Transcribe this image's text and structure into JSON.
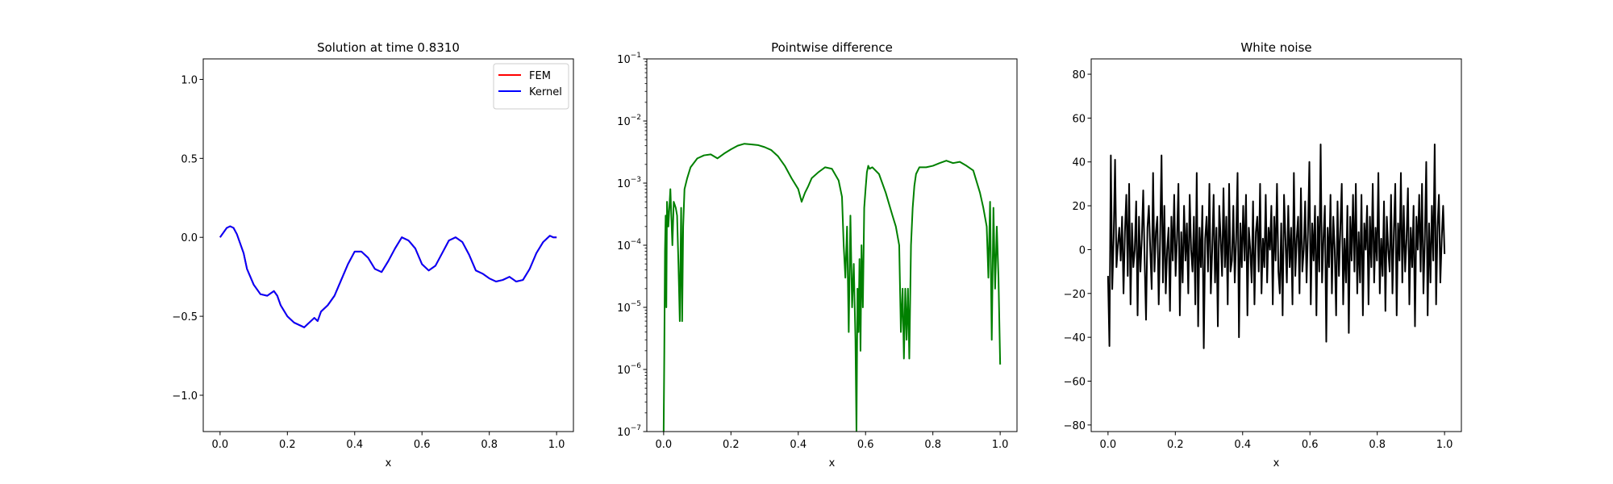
{
  "chart_data": [
    {
      "type": "line",
      "title": "Solution at time 0.8310",
      "xlabel": "x",
      "ylabel": "",
      "xlim": [
        -0.05,
        1.05
      ],
      "ylim": [
        -1.23,
        1.13
      ],
      "xticks": [
        0.0,
        0.2,
        0.4,
        0.6,
        0.8,
        1.0
      ],
      "xtick_labels": [
        "0.0",
        "0.2",
        "0.4",
        "0.6",
        "0.8",
        "1.0"
      ],
      "yticks": [
        -1.0,
        -0.5,
        0.0,
        0.5,
        1.0
      ],
      "ytick_labels": [
        "−1.0",
        "−0.5",
        "0.0",
        "0.5",
        "1.0"
      ],
      "grid": false,
      "legend": "top-right",
      "x": [
        0.0,
        0.01,
        0.02,
        0.03,
        0.04,
        0.05,
        0.06,
        0.07,
        0.08,
        0.1,
        0.12,
        0.14,
        0.16,
        0.17,
        0.18,
        0.2,
        0.22,
        0.24,
        0.25,
        0.26,
        0.28,
        0.29,
        0.3,
        0.32,
        0.34,
        0.36,
        0.38,
        0.4,
        0.42,
        0.44,
        0.46,
        0.48,
        0.5,
        0.52,
        0.54,
        0.56,
        0.58,
        0.6,
        0.62,
        0.64,
        0.66,
        0.68,
        0.7,
        0.72,
        0.74,
        0.76,
        0.78,
        0.8,
        0.82,
        0.84,
        0.86,
        0.88,
        0.9,
        0.92,
        0.94,
        0.96,
        0.98,
        0.99,
        1.0
      ],
      "series": [
        {
          "name": "FEM",
          "color": "#ff0000",
          "values": [
            0.0,
            0.03,
            0.06,
            0.07,
            0.06,
            0.02,
            -0.04,
            -0.1,
            -0.2,
            -0.3,
            -0.36,
            -0.37,
            -0.34,
            -0.37,
            -0.43,
            -0.5,
            -0.54,
            -0.56,
            -0.57,
            -0.55,
            -0.51,
            -0.53,
            -0.47,
            -0.43,
            -0.37,
            -0.27,
            -0.17,
            -0.09,
            -0.09,
            -0.13,
            -0.2,
            -0.22,
            -0.15,
            -0.07,
            -0.0,
            -0.02,
            -0.07,
            -0.17,
            -0.21,
            -0.18,
            -0.1,
            -0.02,
            0.0,
            -0.03,
            -0.11,
            -0.21,
            -0.23,
            -0.26,
            -0.28,
            -0.27,
            -0.25,
            -0.28,
            -0.27,
            -0.2,
            -0.1,
            -0.03,
            0.01,
            -0.0,
            -0.0
          ]
        },
        {
          "name": "Kernel",
          "color": "#0000ff",
          "values": [
            0.0,
            0.03,
            0.06,
            0.07,
            0.06,
            0.02,
            -0.04,
            -0.1,
            -0.2,
            -0.3,
            -0.36,
            -0.37,
            -0.34,
            -0.37,
            -0.43,
            -0.5,
            -0.54,
            -0.56,
            -0.57,
            -0.55,
            -0.51,
            -0.53,
            -0.47,
            -0.43,
            -0.37,
            -0.27,
            -0.17,
            -0.09,
            -0.09,
            -0.13,
            -0.2,
            -0.22,
            -0.15,
            -0.07,
            -0.0,
            -0.02,
            -0.07,
            -0.17,
            -0.21,
            -0.18,
            -0.1,
            -0.02,
            0.0,
            -0.03,
            -0.11,
            -0.21,
            -0.23,
            -0.26,
            -0.28,
            -0.27,
            -0.25,
            -0.28,
            -0.27,
            -0.2,
            -0.1,
            -0.03,
            0.01,
            -0.0,
            -0.0
          ]
        }
      ]
    },
    {
      "type": "line",
      "title": "Pointwise difference",
      "xlabel": "x",
      "ylabel": "",
      "yscale": "log",
      "xlim": [
        -0.05,
        1.05
      ],
      "ylim": [
        1e-07,
        0.1
      ],
      "xticks": [
        0.0,
        0.2,
        0.4,
        0.6,
        0.8,
        1.0
      ],
      "xtick_labels": [
        "0.0",
        "0.2",
        "0.4",
        "0.6",
        "0.8",
        "1.0"
      ],
      "yticks": [
        1e-07,
        1e-06,
        1e-05,
        0.0001,
        0.001,
        0.01,
        0.1
      ],
      "ytick_base": "10",
      "ytick_exponents": [
        "−7",
        "−6",
        "−5",
        "−4",
        "−3",
        "−2",
        "−1"
      ],
      "grid": false,
      "series": [
        {
          "color": "#008000",
          "x": [
            0.0,
            0.002,
            0.004,
            0.006,
            0.008,
            0.01,
            0.014,
            0.02,
            0.026,
            0.03,
            0.036,
            0.04,
            0.044,
            0.048,
            0.052,
            0.055,
            0.058,
            0.062,
            0.07,
            0.08,
            0.1,
            0.12,
            0.14,
            0.16,
            0.18,
            0.2,
            0.22,
            0.24,
            0.26,
            0.28,
            0.3,
            0.32,
            0.34,
            0.36,
            0.38,
            0.4,
            0.41,
            0.42,
            0.43,
            0.44,
            0.46,
            0.48,
            0.5,
            0.52,
            0.53,
            0.535,
            0.54,
            0.545,
            0.55,
            0.555,
            0.56,
            0.565,
            0.57,
            0.573,
            0.576,
            0.579,
            0.582,
            0.585,
            0.588,
            0.592,
            0.596,
            0.6,
            0.604,
            0.608,
            0.612,
            0.62,
            0.64,
            0.66,
            0.68,
            0.69,
            0.7,
            0.705,
            0.71,
            0.714,
            0.718,
            0.722,
            0.726,
            0.73,
            0.735,
            0.74,
            0.745,
            0.75,
            0.76,
            0.78,
            0.8,
            0.82,
            0.84,
            0.86,
            0.88,
            0.9,
            0.92,
            0.94,
            0.95,
            0.96,
            0.965,
            0.97,
            0.975,
            0.98,
            0.985,
            0.99,
            0.995,
            1.0
          ],
          "values": [
            1e-07,
            2e-06,
            8e-05,
            0.0003,
            1e-05,
            0.0005,
            0.0002,
            0.0008,
            0.0001,
            0.0005,
            0.0004,
            0.0003,
            5e-05,
            6e-06,
            0.0004,
            6e-06,
            0.0002,
            0.0008,
            0.0012,
            0.0018,
            0.0025,
            0.0028,
            0.0029,
            0.0025,
            0.003,
            0.0035,
            0.004,
            0.0043,
            0.0042,
            0.0041,
            0.0038,
            0.0034,
            0.0027,
            0.0019,
            0.0012,
            0.0008,
            0.0005,
            0.0007,
            0.0009,
            0.0012,
            0.0015,
            0.0018,
            0.0017,
            0.0011,
            0.0006,
            0.0001,
            3e-05,
            0.0002,
            4e-06,
            0.0003,
            1e-05,
            5e-05,
            3e-06,
            1e-07,
            2e-05,
            4e-06,
            6e-05,
            2e-06,
            0.0001,
            1e-05,
            0.0004,
            0.0008,
            0.0015,
            0.0019,
            0.0017,
            0.0018,
            0.0014,
            0.0007,
            0.0003,
            0.0002,
            0.0001,
            4e-06,
            2e-05,
            1.5e-06,
            2e-05,
            3e-06,
            2e-05,
            1.5e-06,
            0.0001,
            0.0004,
            0.0009,
            0.0014,
            0.0018,
            0.0018,
            0.0019,
            0.0021,
            0.0023,
            0.0021,
            0.0022,
            0.0019,
            0.0016,
            0.0007,
            0.0004,
            0.0002,
            3e-05,
            0.0005,
            3e-06,
            0.0004,
            2e-05,
            0.0002,
            3e-05,
            1.2e-06
          ]
        }
      ]
    },
    {
      "type": "line",
      "title": "White noise",
      "xlabel": "x",
      "ylabel": "",
      "xlim": [
        -0.05,
        1.05
      ],
      "ylim": [
        -83,
        87
      ],
      "xticks": [
        0.0,
        0.2,
        0.4,
        0.6,
        0.8,
        1.0
      ],
      "xtick_labels": [
        "0.0",
        "0.2",
        "0.4",
        "0.6",
        "0.8",
        "1.0"
      ],
      "yticks": [
        -80,
        -60,
        -40,
        -20,
        0,
        20,
        40,
        60,
        80
      ],
      "ytick_labels": [
        "−80",
        "−60",
        "−40",
        "−20",
        "0",
        "20",
        "40",
        "60",
        "80"
      ],
      "grid": false,
      "series": [
        {
          "color": "#000000",
          "x_start": 0.0,
          "x_end": 1.0,
          "values": [
            -12,
            -44,
            43,
            -18,
            5,
            41,
            -8,
            2,
            10,
            -5,
            15,
            -20,
            8,
            25,
            -12,
            30,
            -25,
            12,
            -8,
            0,
            22,
            -30,
            15,
            -10,
            5,
            27,
            -5,
            -32,
            10,
            20,
            0,
            -18,
            35,
            -10,
            8,
            15,
            -25,
            5,
            43,
            -15,
            20,
            -20,
            0,
            10,
            -28,
            15,
            -5,
            25,
            -12,
            5,
            30,
            -30,
            8,
            -15,
            20,
            -5,
            12,
            -20,
            25,
            0,
            -10,
            15,
            -25,
            35,
            -35,
            10,
            -8,
            20,
            -45,
            5,
            15,
            -10,
            30,
            -20,
            0,
            25,
            -15,
            10,
            -35,
            20,
            5,
            -12,
            28,
            -8,
            15,
            -25,
            30,
            -10,
            -5,
            20,
            -15,
            5,
            35,
            -40,
            12,
            -8,
            20,
            -5,
            25,
            -30,
            10,
            0,
            -15,
            22,
            -25,
            8,
            15,
            -10,
            30,
            -20,
            5,
            -8,
            25,
            -15,
            10,
            0,
            20,
            -25,
            15,
            -5,
            30,
            -10,
            -20,
            12,
            -30,
            25,
            5,
            -15,
            20,
            -8,
            10,
            -25,
            35,
            -12,
            5,
            15,
            -20,
            28,
            -10,
            0,
            22,
            -15,
            8,
            40,
            -25,
            12,
            -5,
            20,
            -30,
            15,
            -10,
            48,
            -15,
            5,
            20,
            -42,
            10,
            -8,
            25,
            -20,
            15,
            0,
            -30,
            22,
            -12,
            10,
            30,
            -25,
            5,
            -15,
            20,
            -38,
            15,
            -5,
            25,
            -10,
            30,
            -20,
            8,
            -15,
            25,
            -30,
            12,
            0,
            20,
            -25,
            15,
            -8,
            30,
            -15,
            10,
            -5,
            35,
            -20,
            5,
            -12,
            22,
            -28,
            15,
            0,
            -10,
            25,
            -20,
            8,
            30,
            -30,
            12,
            -5,
            35,
            -15,
            20,
            -10,
            5,
            28,
            -25,
            10,
            -8,
            20,
            -35,
            15,
            0,
            25,
            -10,
            30,
            -20,
            5,
            40,
            -30,
            12,
            -15,
            20,
            -5,
            48,
            -25,
            10,
            25,
            -15,
            5,
            20,
            -2
          ]
        }
      ]
    }
  ]
}
